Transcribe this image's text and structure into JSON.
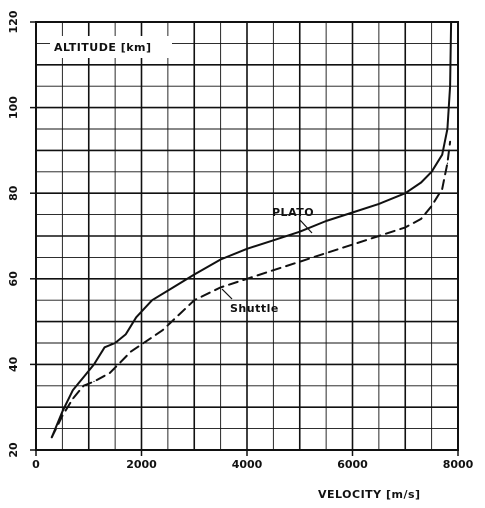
{
  "chart_data": {
    "type": "line",
    "title": "",
    "xlabel": "VELOCITY [m/s]",
    "ylabel": "ALTITUDE [km]",
    "xlim": [
      0,
      8000
    ],
    "ylim": [
      20,
      120
    ],
    "grid": true,
    "x_ticks": [
      "0",
      "2000",
      "4000",
      "6000",
      "8000"
    ],
    "y_ticks": [
      "20",
      "40",
      "60",
      "80",
      "100",
      "120"
    ],
    "series": [
      {
        "name": "PLATO",
        "style": "solid",
        "x": [
          300,
          500,
          700,
          900,
          1100,
          1300,
          1500,
          1700,
          1900,
          2200,
          2600,
          3000,
          3500,
          4000,
          4500,
          5000,
          5500,
          6000,
          6500,
          7000,
          7300,
          7500,
          7700,
          7800,
          7850,
          7870
        ],
        "y": [
          23,
          29,
          34,
          37,
          40,
          44,
          45,
          47,
          51,
          55,
          58,
          61,
          64.5,
          67,
          69,
          71,
          73.5,
          75.5,
          77.5,
          80,
          82.5,
          85,
          89,
          95,
          105,
          120
        ]
      },
      {
        "name": "Shuttle",
        "style": "dashed",
        "x": [
          300,
          500,
          700,
          900,
          1100,
          1400,
          1800,
          2400,
          3000,
          3500,
          4000,
          4500,
          5000,
          5500,
          6000,
          6500,
          7000,
          7300,
          7500,
          7700,
          7800,
          7850
        ],
        "y": [
          23,
          28,
          32,
          35,
          36,
          38,
          43,
          48,
          55,
          58,
          60,
          62,
          64,
          66,
          68,
          70,
          72,
          74,
          77,
          81,
          87,
          92
        ]
      }
    ],
    "annotations": [
      "PLATO",
      "Shuttle"
    ]
  }
}
